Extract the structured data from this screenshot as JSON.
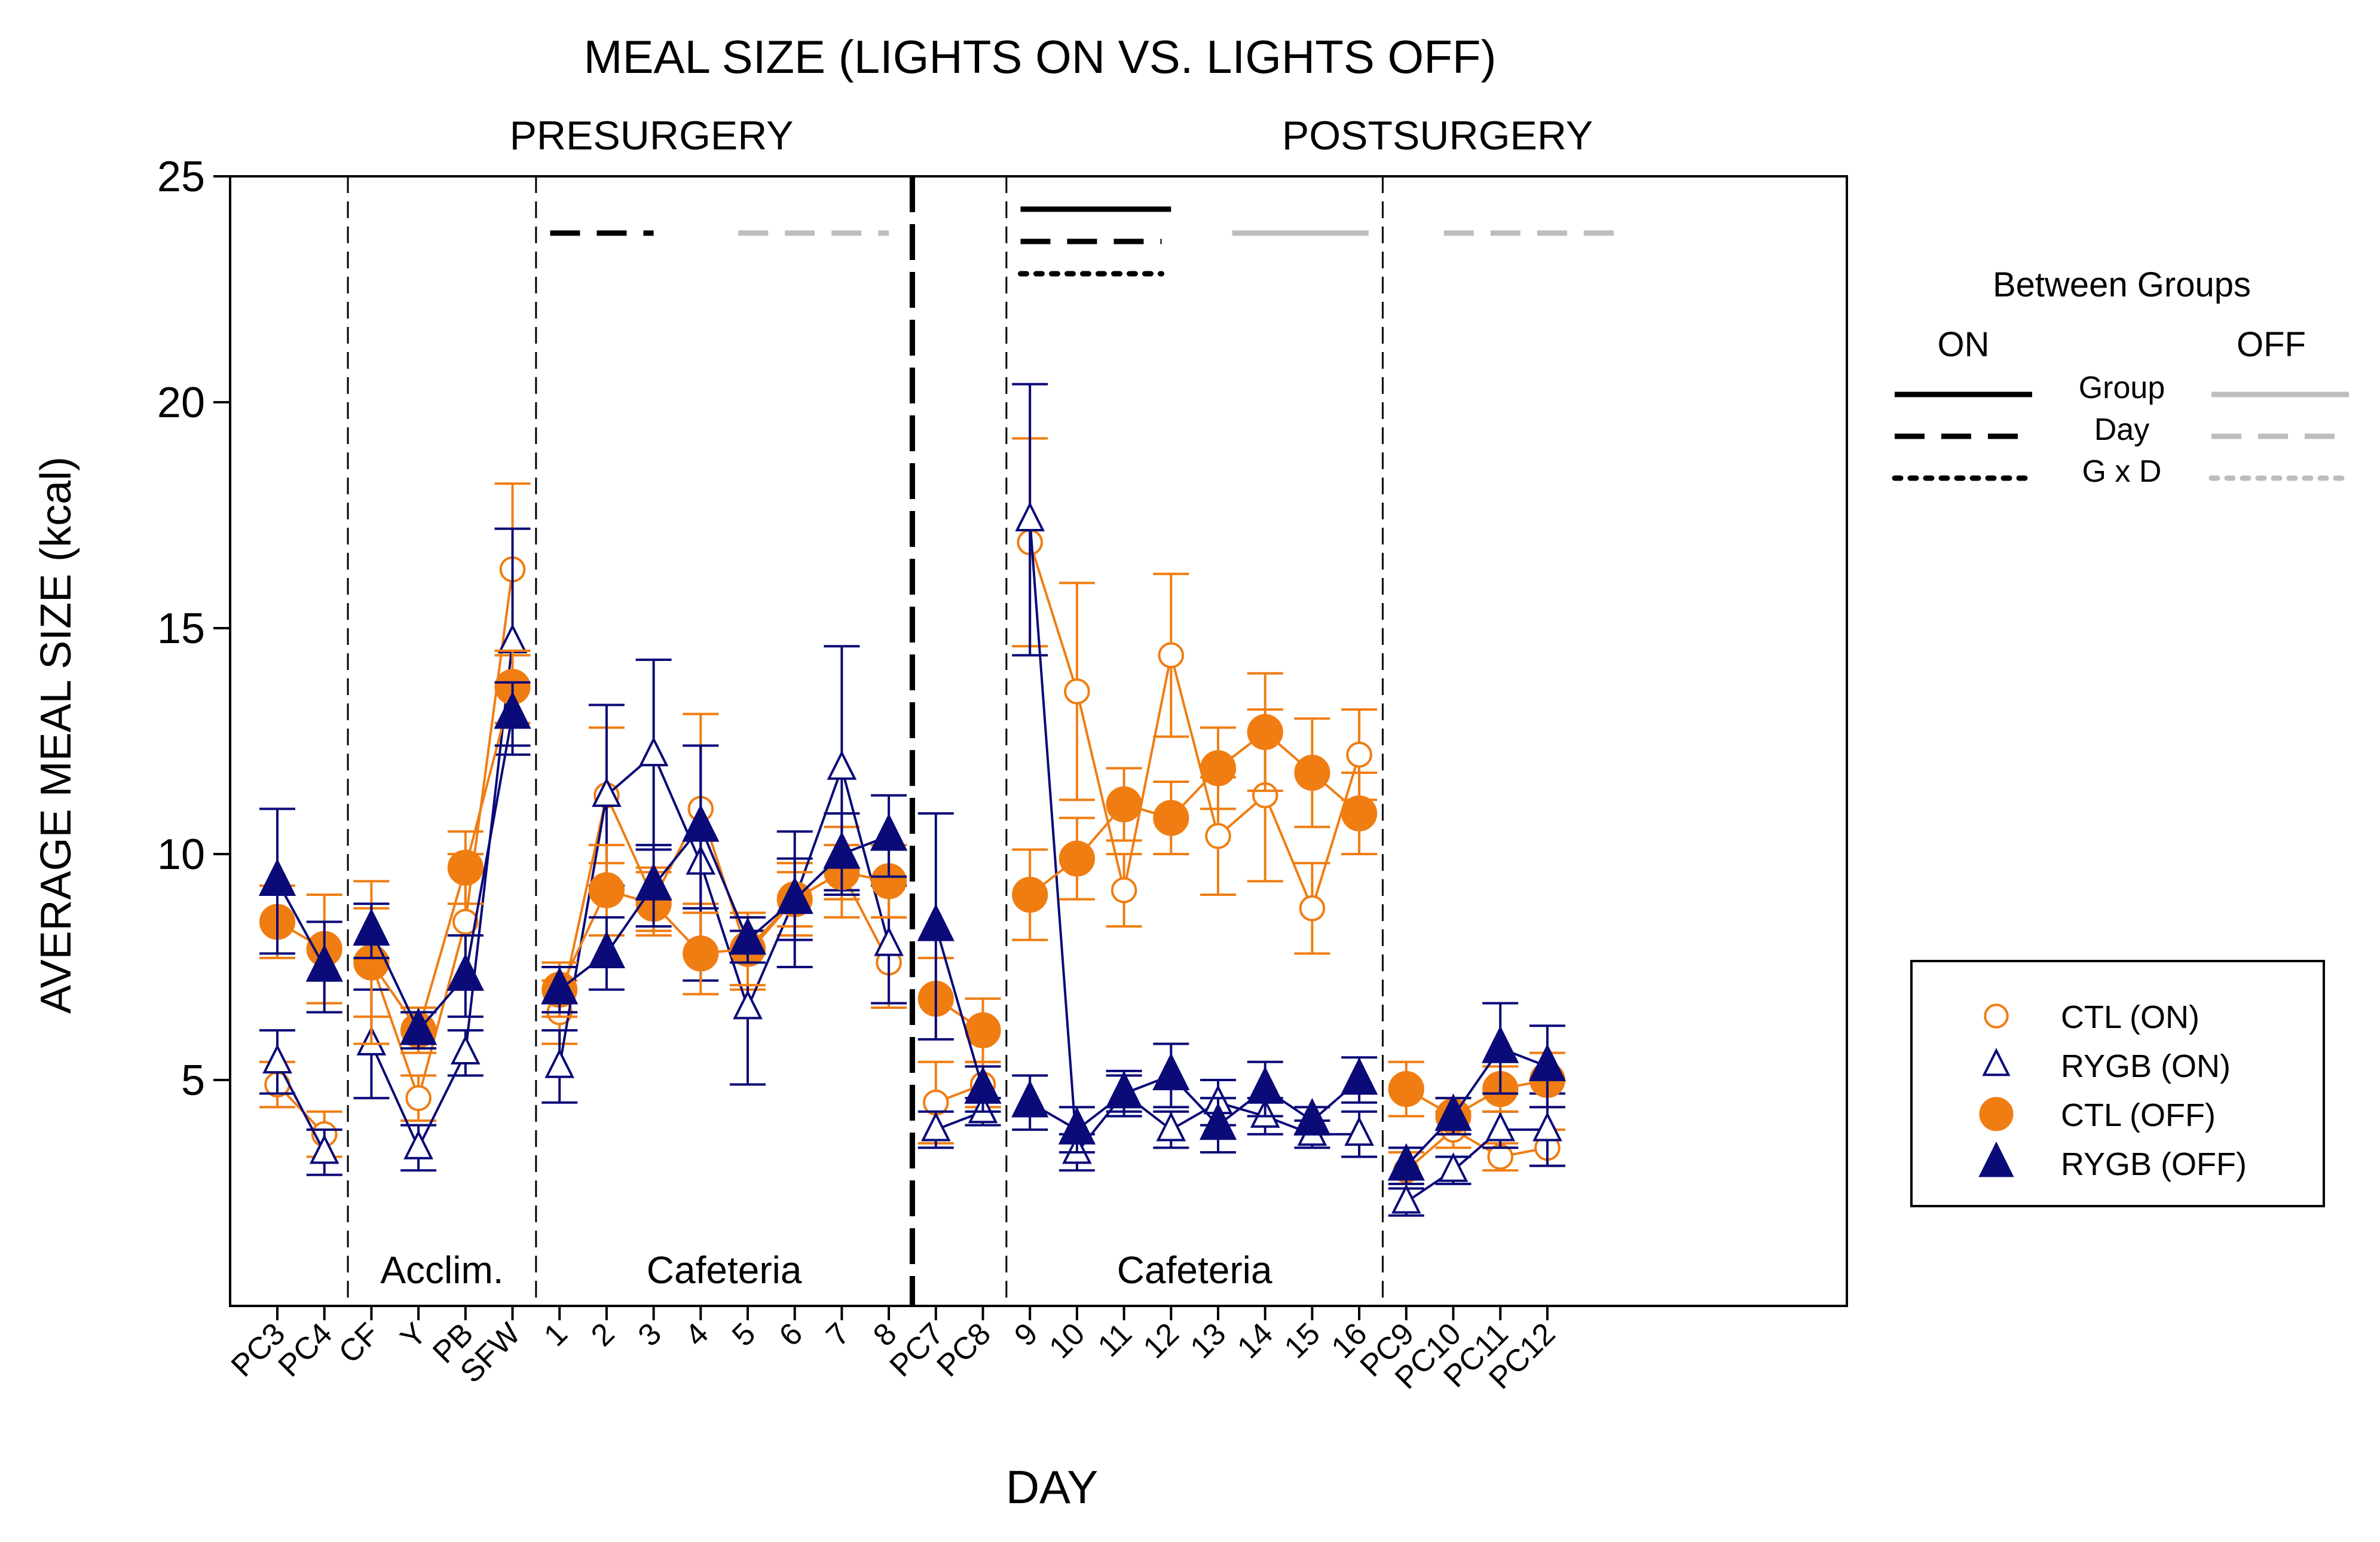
{
  "chart_data": {
    "type": "line",
    "title": "MEAL SIZE (LIGHTS ON VS. LIGHTS OFF)",
    "xlabel": "DAY",
    "ylabel": "AVERAGE MEAL SIZE (kcal)",
    "ylim": [
      0,
      25
    ],
    "yticks": [
      5,
      10,
      15,
      20,
      25
    ],
    "sections": [
      "PRESURGERY",
      "POSTSURGERY"
    ],
    "block_labels": [
      {
        "text": "Acclim.",
        "start": 2,
        "end": 5
      },
      {
        "text": "Cafeteria",
        "start": 6,
        "end": 13
      },
      {
        "text": "Cafeteria",
        "start": 16,
        "end": 23
      }
    ],
    "categories": [
      "PC3",
      "PC4",
      "CF",
      "Y",
      "PB",
      "SFW",
      "1",
      "2",
      "3",
      "4",
      "5",
      "6",
      "7",
      "8",
      "PC7",
      "PC8",
      "9",
      "10",
      "11",
      "12",
      "13",
      "14",
      "15",
      "16",
      "PC9",
      "PC10",
      "PC11",
      "PC12"
    ],
    "line_segments": [
      [
        0,
        1
      ],
      [
        2,
        5
      ],
      [
        6,
        13
      ],
      [
        14,
        15
      ],
      [
        16,
        23
      ],
      [
        24,
        27
      ]
    ],
    "series": [
      {
        "name": "CTL (ON)",
        "color": "#F07D12",
        "marker": "circle",
        "filled": false,
        "values": [
          4.9,
          3.8,
          7.6,
          4.6,
          8.5,
          16.3,
          6.5,
          11.3,
          9.0,
          11.0,
          7.8,
          9.0,
          9.6,
          7.6,
          4.5,
          4.9,
          16.9,
          13.6,
          9.2,
          14.4,
          10.4,
          11.3,
          8.8,
          12.2,
          3.0,
          3.9,
          3.3,
          3.5
        ],
        "errors": [
          0.5,
          0.5,
          1.2,
          0.5,
          1.5,
          1.9,
          0.7,
          1.5,
          0.7,
          2.1,
          0.8,
          0.8,
          1.0,
          1.0,
          0.9,
          0.5,
          2.3,
          2.4,
          0.8,
          1.8,
          1.3,
          1.9,
          1.0,
          1.0,
          0.4,
          0.4,
          0.3,
          0.4
        ]
      },
      {
        "name": "RYGB (ON)",
        "color": "#0A0A78",
        "marker": "triangle",
        "filled": false,
        "values": [
          5.4,
          3.4,
          5.8,
          3.5,
          5.6,
          14.7,
          5.3,
          11.3,
          12.2,
          9.8,
          6.6,
          9.0,
          11.9,
          8.0,
          3.9,
          4.3,
          17.4,
          3.4,
          4.7,
          3.9,
          4.5,
          4.2,
          3.8,
          3.8,
          2.3,
          3.0,
          3.9,
          3.9
        ],
        "errors": [
          0.7,
          0.5,
          1.2,
          0.5,
          0.5,
          2.5,
          0.8,
          2.0,
          2.1,
          2.6,
          1.7,
          0.9,
          2.7,
          1.3,
          0.4,
          0.3,
          3.0,
          0.4,
          0.4,
          0.4,
          0.5,
          0.4,
          0.3,
          0.5,
          0.3,
          0.3,
          0.4,
          0.8
        ]
      },
      {
        "name": "CTL (OFF)",
        "color": "#F07D12",
        "marker": "circle",
        "filled": true,
        "values": [
          8.5,
          7.9,
          7.6,
          6.1,
          9.7,
          13.7,
          7.0,
          9.2,
          8.9,
          7.8,
          7.9,
          9.0,
          9.6,
          9.4,
          6.8,
          6.1,
          9.1,
          9.9,
          11.1,
          10.8,
          11.9,
          12.7,
          11.8,
          10.9,
          4.8,
          4.2,
          4.8,
          5.0
        ],
        "errors": [
          0.8,
          1.2,
          1.8,
          0.5,
          0.8,
          0.8,
          0.6,
          1.0,
          0.7,
          0.9,
          0.8,
          0.6,
          0.6,
          0.8,
          0.9,
          0.7,
          1.0,
          0.9,
          0.8,
          0.8,
          0.9,
          1.3,
          1.2,
          0.9,
          0.6,
          0.4,
          0.5,
          0.6
        ]
      },
      {
        "name": "RYGB (OFF)",
        "color": "#0A0A78",
        "marker": "triangle",
        "filled": true,
        "values": [
          9.4,
          7.5,
          8.3,
          6.1,
          7.3,
          13.1,
          7.0,
          7.8,
          9.3,
          10.6,
          8.1,
          9.0,
          10.0,
          10.4,
          8.4,
          4.8,
          4.5,
          3.9,
          4.7,
          5.1,
          4.0,
          4.8,
          4.1,
          5.0,
          3.1,
          4.2,
          5.7,
          5.3
        ],
        "errors": [
          1.6,
          1.0,
          0.6,
          0.4,
          0.9,
          0.7,
          0.5,
          0.8,
          0.9,
          1.8,
          0.5,
          1.5,
          0.9,
          0.9,
          2.5,
          0.5,
          0.6,
          0.5,
          0.5,
          0.7,
          0.6,
          0.6,
          0.3,
          0.5,
          0.4,
          0.4,
          1.0,
          0.9
        ]
      }
    ],
    "significance_bars": [
      {
        "type": "Day",
        "group": "ON",
        "start": 6,
        "end": 8
      },
      {
        "type": "Day",
        "group": "OFF",
        "start": 10,
        "end": 13
      },
      {
        "type": "Group",
        "group": "ON",
        "start": 16,
        "end": 19
      },
      {
        "type": "Day",
        "group": "ON",
        "start": 16,
        "end": 18.8
      },
      {
        "type": "G x D",
        "group": "ON",
        "start": 16,
        "end": 18.8
      },
      {
        "type": "Group",
        "group": "OFF",
        "start": 20.5,
        "end": 23.2
      },
      {
        "type": "Day",
        "group": "OFF",
        "start": 25,
        "end": 28.6
      }
    ],
    "test_legend": {
      "title": "Between Groups",
      "on_label": "ON",
      "off_label": "OFF",
      "rows": [
        "Group",
        "Day",
        "G x D"
      ]
    },
    "legend_position": "right"
  }
}
